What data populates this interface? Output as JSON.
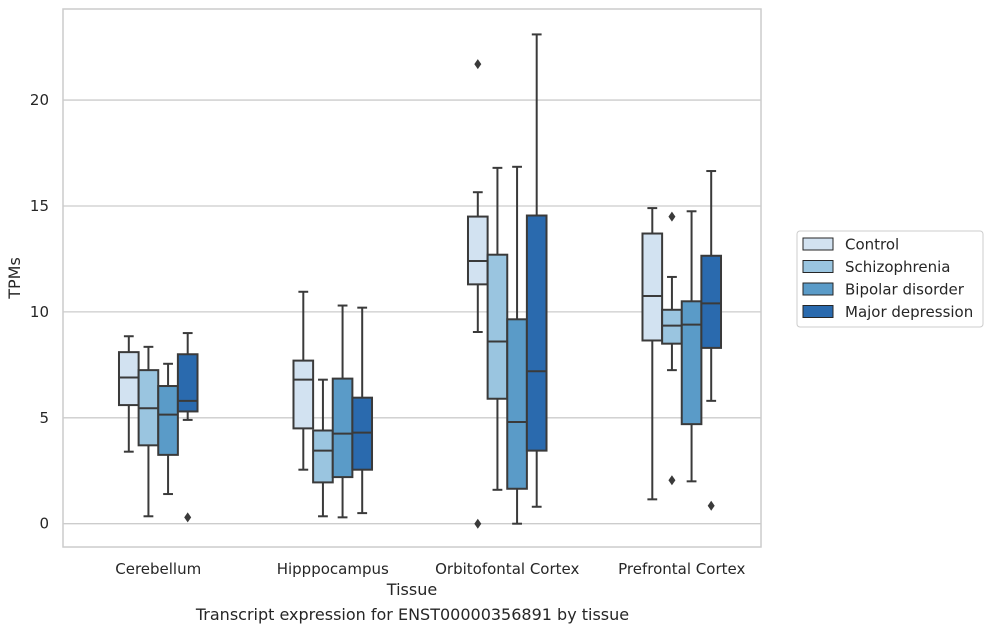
{
  "chart_data": {
    "type": "box",
    "xlabel": "Tissue",
    "ylabel": "TPMs",
    "caption": "Transcript expression for ENST00000356891 by tissue",
    "ylim": [
      -1.1,
      24.3
    ],
    "yticks": [
      0,
      5,
      10,
      15,
      20
    ],
    "grid": true,
    "legend_position": "right",
    "categories": [
      "Cerebellum",
      "Hipppocampus",
      "Orbitofontal Cortex",
      "Prefrontal Cortex"
    ],
    "series": [
      {
        "name": "Control",
        "color": "#d2e2f1",
        "boxes": [
          {
            "min": 3.4,
            "q1": 5.6,
            "median": 6.9,
            "q3": 8.1,
            "max": 8.85,
            "outliers": []
          },
          {
            "min": 2.55,
            "q1": 4.5,
            "median": 6.8,
            "q3": 7.7,
            "max": 10.95,
            "outliers": []
          },
          {
            "min": 9.05,
            "q1": 11.3,
            "median": 12.4,
            "q3": 14.5,
            "max": 15.65,
            "outliers": [
              21.7,
              0.0
            ]
          },
          {
            "min": 1.15,
            "q1": 8.65,
            "median": 10.75,
            "q3": 13.7,
            "max": 14.9,
            "outliers": []
          }
        ]
      },
      {
        "name": "Schizophrenia",
        "color": "#9ac5e0",
        "boxes": [
          {
            "min": 0.35,
            "q1": 3.7,
            "median": 5.45,
            "q3": 7.25,
            "max": 8.35,
            "outliers": []
          },
          {
            "min": 0.35,
            "q1": 1.95,
            "median": 3.45,
            "q3": 4.4,
            "max": 6.8,
            "outliers": []
          },
          {
            "min": 1.6,
            "q1": 5.9,
            "median": 8.6,
            "q3": 12.7,
            "max": 16.8,
            "outliers": []
          },
          {
            "min": 7.25,
            "q1": 8.5,
            "median": 9.35,
            "q3": 10.1,
            "max": 11.65,
            "outliers": [
              14.5,
              2.05
            ]
          }
        ]
      },
      {
        "name": "Bipolar disorder",
        "color": "#5a9bc8",
        "boxes": [
          {
            "min": 1.4,
            "q1": 3.25,
            "median": 5.15,
            "q3": 6.5,
            "max": 7.55,
            "outliers": []
          },
          {
            "min": 0.3,
            "q1": 2.2,
            "median": 4.25,
            "q3": 6.85,
            "max": 10.3,
            "outliers": []
          },
          {
            "min": 0.0,
            "q1": 1.65,
            "median": 4.8,
            "q3": 9.65,
            "max": 16.85,
            "outliers": []
          },
          {
            "min": 2.0,
            "q1": 4.7,
            "median": 9.4,
            "q3": 10.5,
            "max": 14.75,
            "outliers": []
          }
        ]
      },
      {
        "name": "Major depression",
        "color": "#2a6aae",
        "boxes": [
          {
            "min": 4.9,
            "q1": 5.3,
            "median": 5.8,
            "q3": 8.0,
            "max": 9.0,
            "outliers": [
              0.3
            ]
          },
          {
            "min": 0.5,
            "q1": 2.55,
            "median": 4.3,
            "q3": 5.95,
            "max": 10.2,
            "outliers": []
          },
          {
            "min": 0.8,
            "q1": 3.45,
            "median": 7.2,
            "q3": 14.55,
            "max": 23.1,
            "outliers": []
          },
          {
            "min": 5.8,
            "q1": 8.3,
            "median": 10.4,
            "q3": 12.65,
            "max": 16.65,
            "outliers": [
              0.85
            ]
          }
        ]
      }
    ]
  }
}
